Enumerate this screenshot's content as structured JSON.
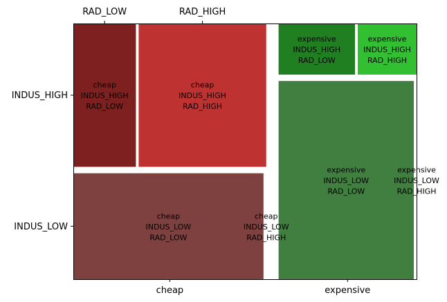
{
  "chart_data": {
    "type": "mosaic",
    "x_variable_values": [
      "cheap",
      "expensive"
    ],
    "y_variable_values": [
      "INDUS_LOW",
      "INDUS_HIGH"
    ],
    "top_variable_values": [
      "RAD_LOW",
      "RAD_HIGH"
    ],
    "bottom_axis_labels": [
      "cheap",
      "expensive"
    ],
    "left_axis_labels": [
      "INDUS_HIGH",
      "INDUS_LOW"
    ],
    "top_axis_labels": [
      "RAD_LOW",
      "RAD_HIGH"
    ],
    "grid": false,
    "cells": [
      {
        "x": "cheap",
        "y": "INDUS_HIGH",
        "z": "RAD_LOW",
        "lines": [
          "cheap",
          "INDUS_HIGH",
          "RAD_LOW"
        ],
        "color": "#7f2020",
        "x_share": 0.583,
        "y_share_within_x": 0.575,
        "z_share_within_xy": 0.329
      },
      {
        "x": "cheap",
        "y": "INDUS_HIGH",
        "z": "RAD_HIGH",
        "lines": [
          "cheap",
          "INDUS_HIGH",
          "RAD_HIGH"
        ],
        "color": "#bf3232",
        "x_share": 0.583,
        "y_share_within_x": 0.575,
        "z_share_within_xy": 0.671
      },
      {
        "x": "cheap",
        "y": "INDUS_LOW",
        "z": "RAD_LOW",
        "lines": [
          "cheap",
          "INDUS_LOW",
          "RAD_LOW"
        ],
        "color": "#7f4040",
        "x_share": 0.583,
        "y_share_within_x": 0.425,
        "z_share_within_xy": 1.0
      },
      {
        "x": "cheap",
        "y": "INDUS_LOW",
        "z": "RAD_HIGH",
        "lines": [
          "cheap",
          "INDUS_LOW",
          "RAD_HIGH"
        ],
        "color": "#bf6060",
        "x_share": 0.583,
        "y_share_within_x": 0.425,
        "z_share_within_xy": 0.0
      },
      {
        "x": "expensive",
        "y": "INDUS_HIGH",
        "z": "RAD_LOW",
        "lines": [
          "expensive",
          "INDUS_HIGH",
          "RAD_LOW"
        ],
        "color": "#207f20",
        "x_share": 0.417,
        "y_share_within_x": 0.205,
        "z_share_within_xy": 0.565
      },
      {
        "x": "expensive",
        "y": "INDUS_HIGH",
        "z": "RAD_HIGH",
        "lines": [
          "expensive",
          "INDUS_HIGH",
          "RAD_HIGH"
        ],
        "color": "#32bf32",
        "x_share": 0.417,
        "y_share_within_x": 0.205,
        "z_share_within_xy": 0.435
      },
      {
        "x": "expensive",
        "y": "INDUS_LOW",
        "z": "RAD_LOW",
        "lines": [
          "expensive",
          "INDUS_LOW",
          "RAD_LOW"
        ],
        "color": "#407f40",
        "x_share": 0.417,
        "y_share_within_x": 0.795,
        "z_share_within_xy": 1.0
      },
      {
        "x": "expensive",
        "y": "INDUS_LOW",
        "z": "RAD_HIGH",
        "lines": [
          "expensive",
          "INDUS_LOW",
          "RAD_HIGH"
        ],
        "color": "#60bf60",
        "x_share": 0.417,
        "y_share_within_x": 0.795,
        "z_share_within_xy": 0.0
      }
    ]
  }
}
